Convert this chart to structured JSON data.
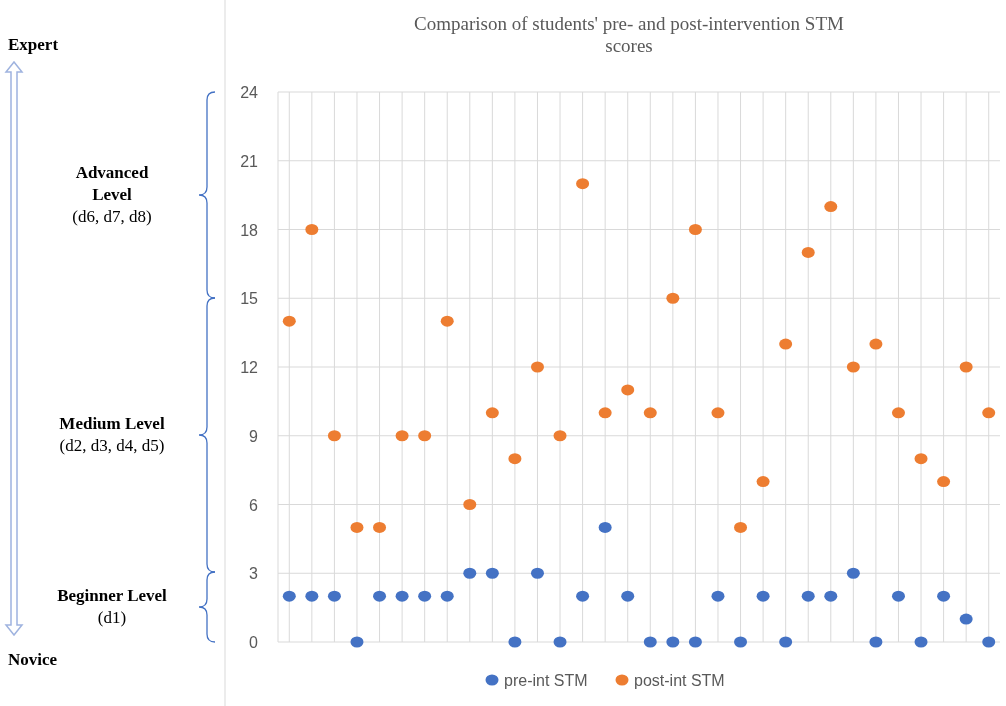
{
  "chart_data": {
    "type": "scatter",
    "title": "Comparison of students' pre- and post-intervention STM\nscores",
    "categories": [
      null,
      null,
      null,
      null,
      null,
      null,
      null,
      null,
      null,
      null,
      null,
      null,
      null,
      null,
      null,
      null,
      null,
      null,
      null,
      null,
      null,
      null,
      null,
      null,
      null,
      null,
      null,
      null,
      null,
      null,
      null,
      null
    ],
    "series": [
      {
        "name": "pre-int STM",
        "color": "#4472c4",
        "values": [
          2,
          2,
          2,
          0,
          2,
          2,
          2,
          2,
          3,
          3,
          0,
          3,
          0,
          2,
          5,
          2,
          0,
          0,
          0,
          2,
          0,
          2,
          0,
          2,
          2,
          3,
          0,
          2,
          0,
          2,
          1,
          0
        ]
      },
      {
        "name": "post-int STM",
        "color": "#ed7d31",
        "values": [
          14,
          18,
          9,
          5,
          5,
          9,
          9,
          14,
          6,
          10,
          8,
          12,
          9,
          20,
          10,
          11,
          10,
          15,
          18,
          10,
          5,
          7,
          13,
          17,
          19,
          12,
          13,
          10,
          8,
          7,
          12,
          10
        ]
      }
    ],
    "ylim": [
      0,
      24
    ],
    "yticks": [
      0,
      3,
      6,
      9,
      12,
      15,
      18,
      21,
      24
    ],
    "grid": true,
    "legend": "bottom",
    "marker": "circle",
    "annotations": [
      "Expert",
      "Novice",
      "Advanced\nLevel\n(d6, d7, d8)",
      "Medium Level\n(d2, d3, d4, d5)",
      "Beginner Level\n(d1)"
    ]
  }
}
